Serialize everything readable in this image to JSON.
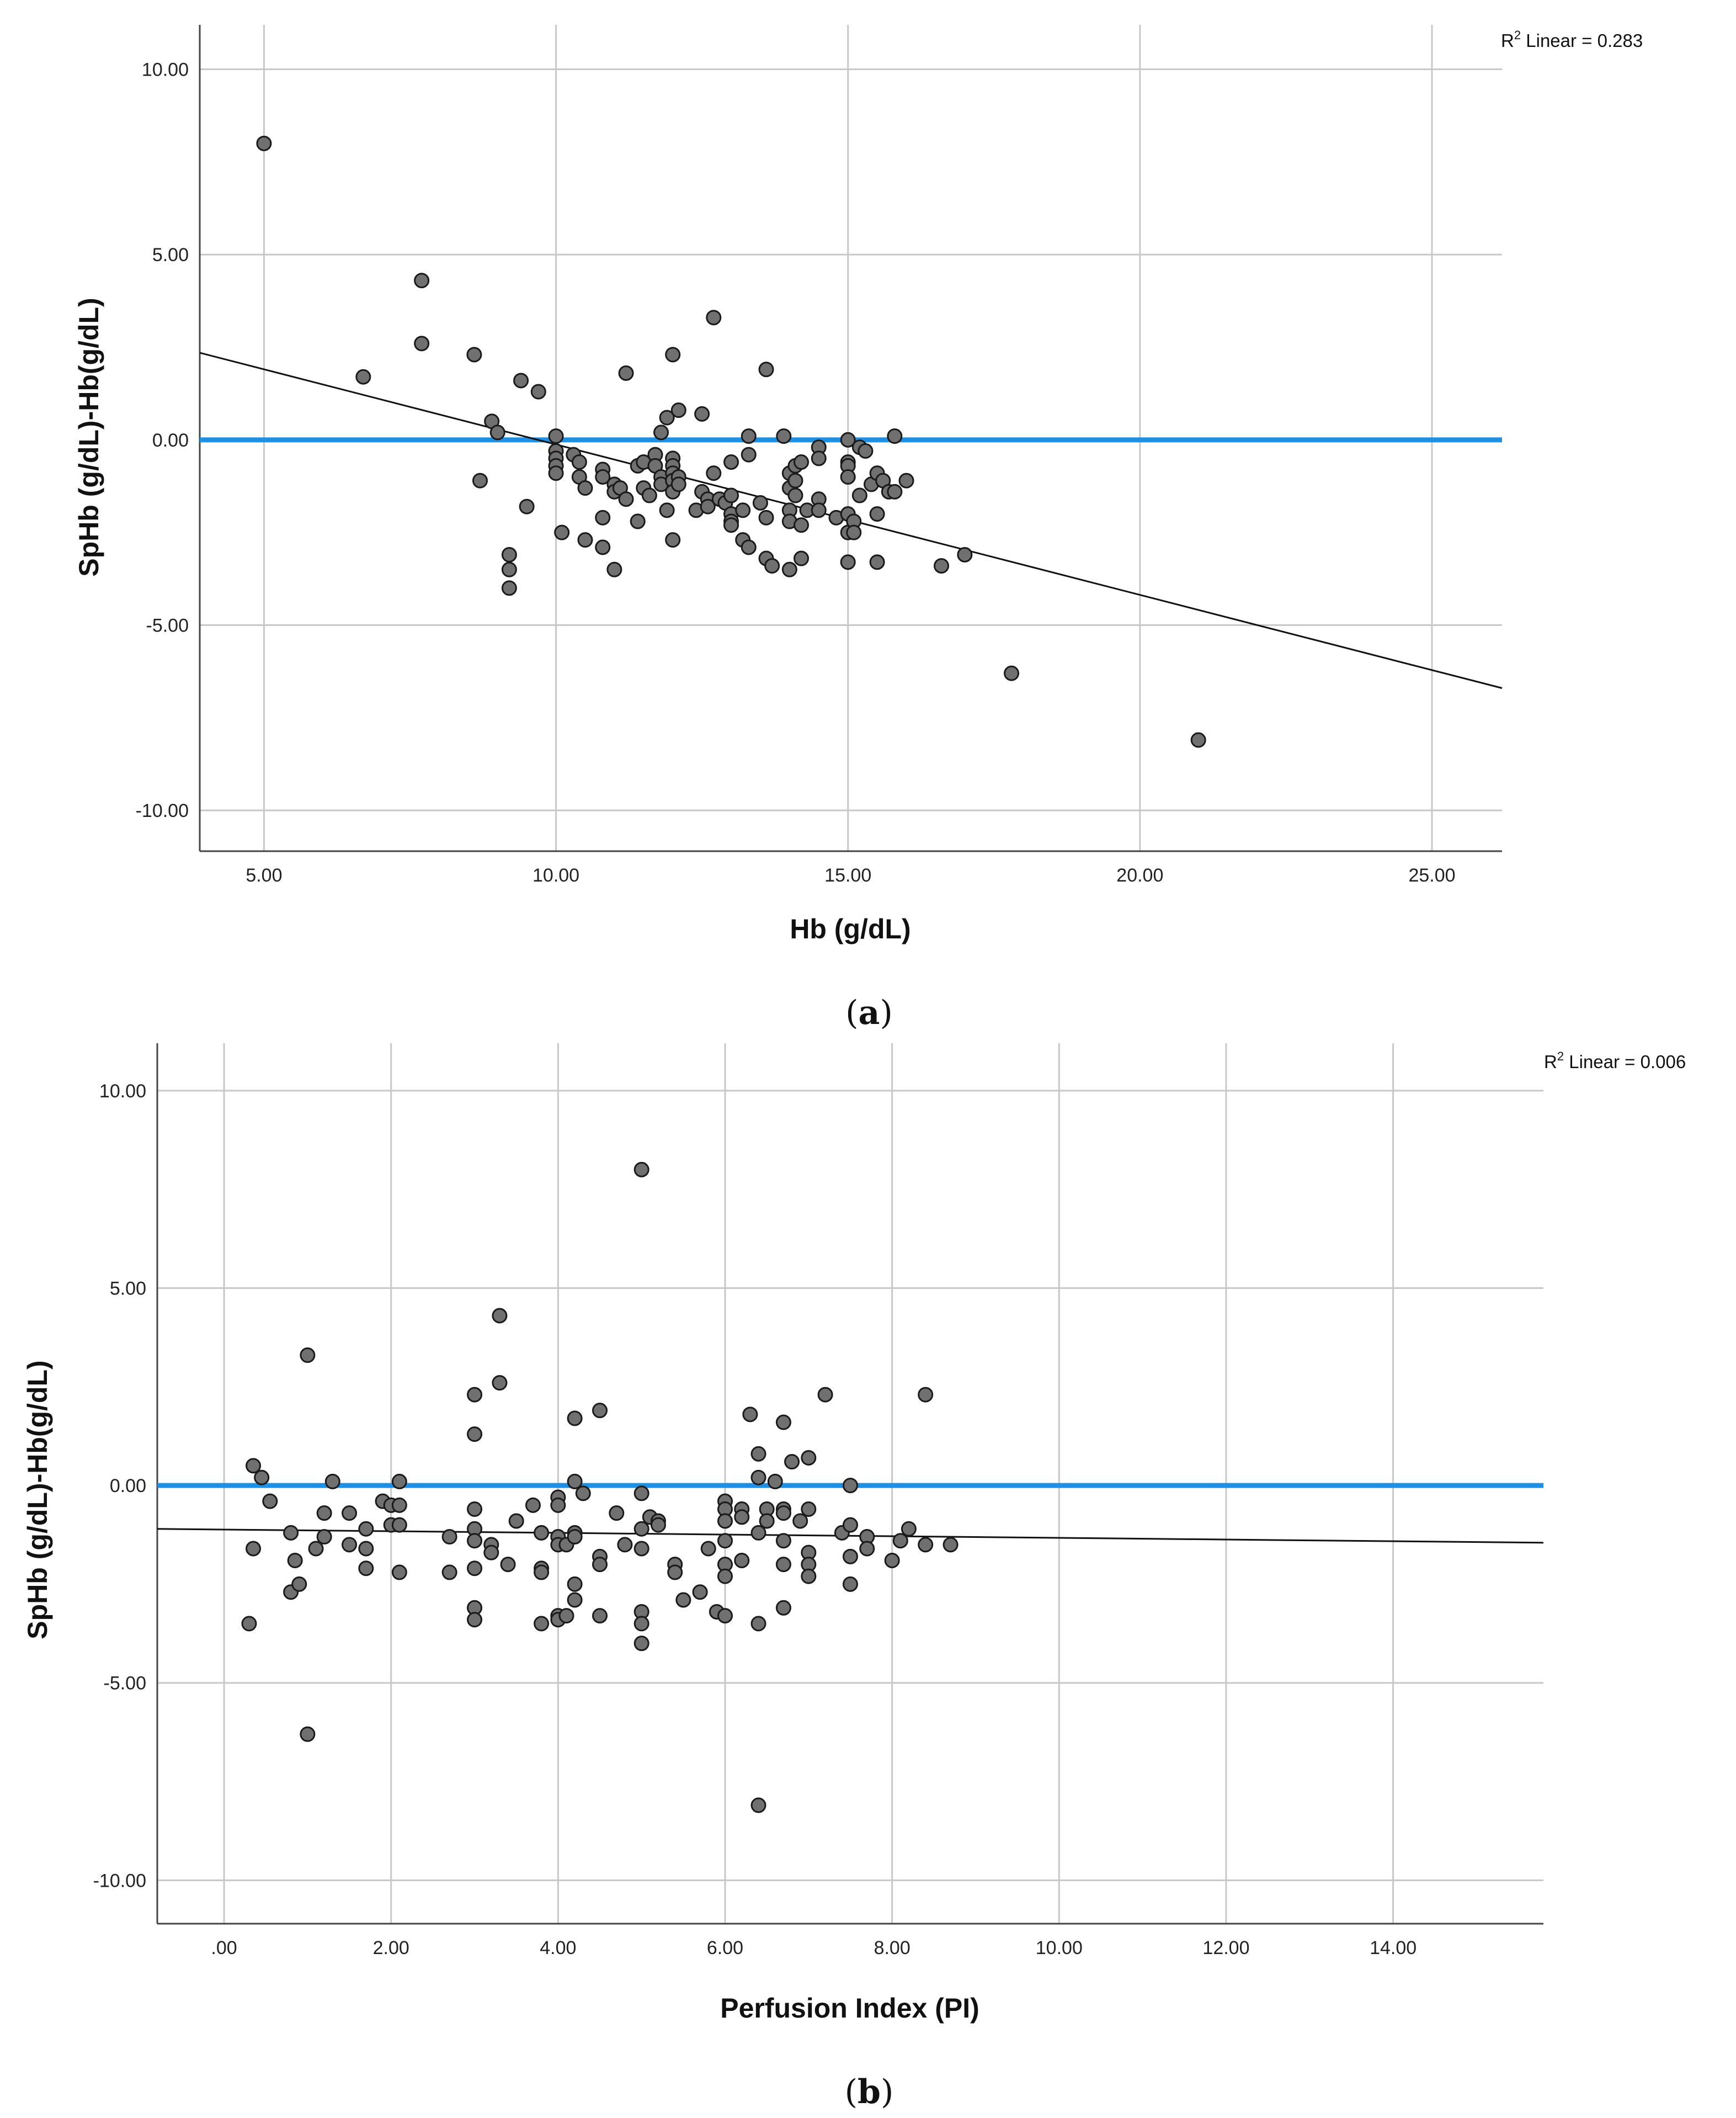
{
  "chart_data": [
    {
      "id": "a",
      "type": "scatter",
      "caption": "a",
      "xlabel": "Hb (g/dL)",
      "ylabel": "SpHb (g/dL)-Hb(g/dL)",
      "xlim": [
        3.9,
        26.2
      ],
      "ylim": [
        -11.1,
        11.2
      ],
      "xticks": [
        5,
        10,
        15,
        20,
        25
      ],
      "xtick_labels": [
        "5.00",
        "10.00",
        "15.00",
        "20.00",
        "25.00"
      ],
      "yticks": [
        10,
        5,
        0,
        -5,
        -10
      ],
      "ytick_labels": [
        "10.00",
        "5.00",
        "0.00",
        "-5.00",
        "-10.00"
      ],
      "grid": true,
      "r2_label_prefix": "R",
      "r2_label_sup": "2",
      "r2_label_suffix": " Linear = 0.283",
      "reference_line": {
        "y": 0,
        "color": "#1e90e6"
      },
      "fit_line": {
        "x": [
          3.9,
          26.2
        ],
        "y": [
          2.35,
          -6.7
        ],
        "color": "#111111"
      },
      "point_color": "#707070",
      "points": [
        [
          5.0,
          8.0
        ],
        [
          6.7,
          1.7
        ],
        [
          7.7,
          4.3
        ],
        [
          7.7,
          2.6
        ],
        [
          8.6,
          2.3
        ],
        [
          8.7,
          -1.1
        ],
        [
          8.9,
          0.5
        ],
        [
          9.0,
          0.2
        ],
        [
          9.2,
          -3.1
        ],
        [
          9.2,
          -3.5
        ],
        [
          9.2,
          -4.0
        ],
        [
          9.4,
          1.6
        ],
        [
          9.5,
          -1.8
        ],
        [
          9.7,
          1.3
        ],
        [
          10.0,
          0.1
        ],
        [
          10.0,
          -0.3
        ],
        [
          10.0,
          -0.5
        ],
        [
          10.0,
          -0.7
        ],
        [
          10.0,
          -0.9
        ],
        [
          10.1,
          -2.5
        ],
        [
          10.3,
          -0.4
        ],
        [
          10.4,
          -0.6
        ],
        [
          10.4,
          -1.0
        ],
        [
          10.5,
          -1.3
        ],
        [
          10.5,
          -2.7
        ],
        [
          10.8,
          -0.8
        ],
        [
          10.8,
          -1.0
        ],
        [
          10.8,
          -2.1
        ],
        [
          10.8,
          -2.9
        ],
        [
          11.0,
          -1.2
        ],
        [
          11.0,
          -1.4
        ],
        [
          11.0,
          -3.5
        ],
        [
          11.1,
          -1.3
        ],
        [
          11.2,
          -1.6
        ],
        [
          11.2,
          1.8
        ],
        [
          11.4,
          -0.7
        ],
        [
          11.4,
          -2.2
        ],
        [
          11.5,
          -0.6
        ],
        [
          11.5,
          -1.3
        ],
        [
          11.6,
          -1.5
        ],
        [
          11.7,
          -0.4
        ],
        [
          11.7,
          -0.7
        ],
        [
          11.8,
          0.2
        ],
        [
          11.8,
          -1.0
        ],
        [
          11.8,
          -1.2
        ],
        [
          11.9,
          -1.9
        ],
        [
          11.9,
          0.6
        ],
        [
          12.0,
          -0.5
        ],
        [
          12.0,
          -0.7
        ],
        [
          12.0,
          -0.9
        ],
        [
          12.0,
          -1.1
        ],
        [
          12.0,
          -1.4
        ],
        [
          12.0,
          -2.7
        ],
        [
          12.0,
          2.3
        ],
        [
          12.1,
          0.8
        ],
        [
          12.1,
          -1.0
        ],
        [
          12.1,
          -1.2
        ],
        [
          12.4,
          -1.9
        ],
        [
          12.5,
          -1.4
        ],
        [
          12.5,
          0.7
        ],
        [
          12.6,
          -1.6
        ],
        [
          12.6,
          -1.8
        ],
        [
          12.7,
          -0.9
        ],
        [
          12.7,
          3.3
        ],
        [
          12.8,
          -1.6
        ],
        [
          12.9,
          -1.7
        ],
        [
          13.0,
          -0.6
        ],
        [
          13.0,
          -1.5
        ],
        [
          13.0,
          -2.0
        ],
        [
          13.0,
          -2.2
        ],
        [
          13.0,
          -2.3
        ],
        [
          13.2,
          -1.9
        ],
        [
          13.2,
          -2.7
        ],
        [
          13.3,
          0.1
        ],
        [
          13.3,
          -0.4
        ],
        [
          13.3,
          -2.9
        ],
        [
          13.5,
          -1.7
        ],
        [
          13.6,
          1.9
        ],
        [
          13.6,
          -2.1
        ],
        [
          13.6,
          -3.2
        ],
        [
          13.7,
          -3.4
        ],
        [
          13.9,
          0.1
        ],
        [
          14.0,
          -0.9
        ],
        [
          14.0,
          -1.3
        ],
        [
          14.0,
          -1.9
        ],
        [
          14.0,
          -2.2
        ],
        [
          14.0,
          -3.5
        ],
        [
          14.1,
          -0.7
        ],
        [
          14.1,
          -1.1
        ],
        [
          14.1,
          -1.5
        ],
        [
          14.2,
          -0.6
        ],
        [
          14.2,
          -2.3
        ],
        [
          14.2,
          -3.2
        ],
        [
          14.3,
          -1.9
        ],
        [
          14.5,
          -0.2
        ],
        [
          14.5,
          -0.5
        ],
        [
          14.5,
          -1.6
        ],
        [
          14.5,
          -1.9
        ],
        [
          14.8,
          -2.1
        ],
        [
          15.0,
          0.0
        ],
        [
          15.0,
          -0.6
        ],
        [
          15.0,
          -0.7
        ],
        [
          15.0,
          -1.0
        ],
        [
          15.0,
          -2.0
        ],
        [
          15.0,
          -2.5
        ],
        [
          15.0,
          -3.3
        ],
        [
          15.1,
          -2.2
        ],
        [
          15.1,
          -2.5
        ],
        [
          15.2,
          -0.2
        ],
        [
          15.2,
          -1.5
        ],
        [
          15.3,
          -0.3
        ],
        [
          15.4,
          -1.2
        ],
        [
          15.5,
          -0.9
        ],
        [
          15.5,
          -2.0
        ],
        [
          15.5,
          -3.3
        ],
        [
          15.6,
          -1.1
        ],
        [
          15.7,
          -1.4
        ],
        [
          15.8,
          0.1
        ],
        [
          15.8,
          -1.4
        ],
        [
          16.0,
          -1.1
        ],
        [
          16.6,
          -3.4
        ],
        [
          17.0,
          -3.1
        ],
        [
          17.8,
          -6.3
        ],
        [
          21.0,
          -8.1
        ]
      ]
    },
    {
      "id": "b",
      "type": "scatter",
      "caption": "b",
      "xlabel": "Perfusion Index (PI)",
      "ylabel": "SpHb (g/dL)-Hb(g/dL)",
      "xlim": [
        -0.8,
        15.8
      ],
      "ylim": [
        -11.1,
        11.2
      ],
      "xticks": [
        0,
        2,
        4,
        6,
        8,
        10,
        12,
        14
      ],
      "xtick_labels": [
        ".00",
        "2.00",
        "4.00",
        "6.00",
        "8.00",
        "10.00",
        "12.00",
        "14.00"
      ],
      "yticks": [
        10,
        5,
        0,
        -5,
        -10
      ],
      "ytick_labels": [
        "10.00",
        "5.00",
        "0.00",
        "-5.00",
        "-10.00"
      ],
      "grid": true,
      "r2_label_prefix": "R",
      "r2_label_sup": "2",
      "r2_label_suffix": " Linear = 0.006",
      "reference_line": {
        "y": 0,
        "color": "#1e90e6"
      },
      "fit_line": {
        "x": [
          -0.8,
          15.8
        ],
        "y": [
          -1.1,
          -1.45
        ],
        "color": "#111111"
      },
      "point_color": "#707070",
      "points": [
        [
          0.3,
          -3.5
        ],
        [
          0.35,
          0.5
        ],
        [
          0.35,
          -1.6
        ],
        [
          0.45,
          0.2
        ],
        [
          0.55,
          -0.4
        ],
        [
          0.8,
          -2.7
        ],
        [
          0.8,
          -1.2
        ],
        [
          0.85,
          -1.9
        ],
        [
          0.9,
          -2.5
        ],
        [
          1.0,
          3.3
        ],
        [
          1.0,
          -6.3
        ],
        [
          1.1,
          -1.6
        ],
        [
          1.2,
          -0.7
        ],
        [
          1.2,
          -1.3
        ],
        [
          1.3,
          0.1
        ],
        [
          1.5,
          -0.7
        ],
        [
          1.5,
          -1.5
        ],
        [
          1.7,
          -1.1
        ],
        [
          1.7,
          -1.6
        ],
        [
          1.7,
          -2.1
        ],
        [
          1.9,
          -0.4
        ],
        [
          2.0,
          -0.5
        ],
        [
          2.0,
          -1.0
        ],
        [
          2.1,
          0.1
        ],
        [
          2.1,
          -0.5
        ],
        [
          2.1,
          -1.0
        ],
        [
          2.1,
          -2.2
        ],
        [
          2.7,
          -1.3
        ],
        [
          2.7,
          -2.2
        ],
        [
          3.0,
          1.3
        ],
        [
          3.0,
          2.3
        ],
        [
          3.0,
          -0.6
        ],
        [
          3.0,
          -1.1
        ],
        [
          3.0,
          -1.4
        ],
        [
          3.0,
          -2.1
        ],
        [
          3.0,
          -3.1
        ],
        [
          3.0,
          -3.4
        ],
        [
          3.2,
          -1.5
        ],
        [
          3.2,
          -1.7
        ],
        [
          3.3,
          4.3
        ],
        [
          3.3,
          2.6
        ],
        [
          3.4,
          -2.0
        ],
        [
          3.5,
          -0.9
        ],
        [
          3.7,
          -0.5
        ],
        [
          3.8,
          -1.2
        ],
        [
          3.8,
          -2.1
        ],
        [
          3.8,
          -2.2
        ],
        [
          3.8,
          -3.5
        ],
        [
          4.0,
          -0.3
        ],
        [
          4.0,
          -0.5
        ],
        [
          4.0,
          -1.3
        ],
        [
          4.0,
          -1.5
        ],
        [
          4.0,
          -3.3
        ],
        [
          4.0,
          -3.4
        ],
        [
          4.1,
          -1.5
        ],
        [
          4.1,
          -3.3
        ],
        [
          4.2,
          1.7
        ],
        [
          4.2,
          0.1
        ],
        [
          4.2,
          -1.2
        ],
        [
          4.2,
          -1.3
        ],
        [
          4.2,
          -2.5
        ],
        [
          4.2,
          -2.9
        ],
        [
          4.3,
          -0.2
        ],
        [
          4.5,
          1.9
        ],
        [
          4.5,
          -1.8
        ],
        [
          4.5,
          -2.0
        ],
        [
          4.5,
          -3.3
        ],
        [
          4.7,
          -0.7
        ],
        [
          4.8,
          -1.5
        ],
        [
          5.0,
          8.0
        ],
        [
          5.0,
          -0.2
        ],
        [
          5.0,
          -1.1
        ],
        [
          5.0,
          -1.6
        ],
        [
          5.0,
          -3.2
        ],
        [
          5.0,
          -3.5
        ],
        [
          5.0,
          -4.0
        ],
        [
          5.1,
          -0.8
        ],
        [
          5.2,
          -0.9
        ],
        [
          5.2,
          -1.0
        ],
        [
          5.4,
          -2.0
        ],
        [
          5.4,
          -2.2
        ],
        [
          5.5,
          -2.9
        ],
        [
          5.7,
          -2.7
        ],
        [
          5.8,
          -1.6
        ],
        [
          5.9,
          -3.2
        ],
        [
          6.0,
          -0.4
        ],
        [
          6.0,
          -0.6
        ],
        [
          6.0,
          -0.9
        ],
        [
          6.0,
          -1.4
        ],
        [
          6.0,
          -2.0
        ],
        [
          6.0,
          -2.3
        ],
        [
          6.0,
          -3.3
        ],
        [
          6.2,
          -0.6
        ],
        [
          6.2,
          -0.8
        ],
        [
          6.2,
          -1.9
        ],
        [
          6.3,
          1.8
        ],
        [
          6.4,
          0.8
        ],
        [
          6.4,
          0.2
        ],
        [
          6.4,
          -1.2
        ],
        [
          6.4,
          -3.5
        ],
        [
          6.4,
          -8.1
        ],
        [
          6.5,
          -0.6
        ],
        [
          6.5,
          -0.9
        ],
        [
          6.6,
          0.1
        ],
        [
          6.7,
          1.6
        ],
        [
          6.7,
          -0.6
        ],
        [
          6.7,
          -0.7
        ],
        [
          6.7,
          -1.4
        ],
        [
          6.7,
          -2.0
        ],
        [
          6.7,
          -3.1
        ],
        [
          6.8,
          0.6
        ],
        [
          6.9,
          -0.9
        ],
        [
          7.0,
          0.7
        ],
        [
          7.0,
          -0.6
        ],
        [
          7.0,
          -1.7
        ],
        [
          7.0,
          -2.0
        ],
        [
          7.0,
          -2.3
        ],
        [
          7.2,
          2.3
        ],
        [
          7.4,
          -1.2
        ],
        [
          7.5,
          0.0
        ],
        [
          7.5,
          -1.0
        ],
        [
          7.5,
          -1.8
        ],
        [
          7.5,
          -2.5
        ],
        [
          7.7,
          -1.3
        ],
        [
          7.7,
          -1.6
        ],
        [
          8.0,
          -1.9
        ],
        [
          8.1,
          -1.4
        ],
        [
          8.2,
          -1.1
        ],
        [
          8.4,
          2.3
        ],
        [
          8.4,
          -1.5
        ],
        [
          8.7,
          -1.5
        ]
      ]
    }
  ]
}
